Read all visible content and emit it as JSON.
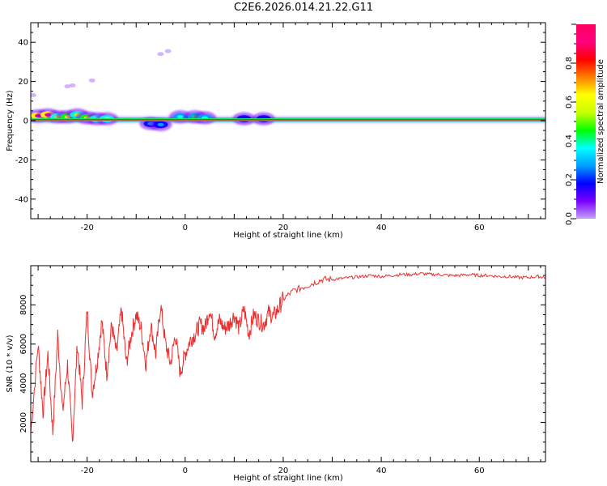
{
  "title": "C2E6.2026.014.21.22.G11",
  "chart_data": [
    {
      "type": "heatmap",
      "title": "",
      "xlabel": "Height of straight line (km)",
      "ylabel": "Frequency (Hz)",
      "xlim": [
        -31.5,
        73.5
      ],
      "ylim": [
        -50,
        50
      ],
      "xticks": [
        -20,
        0,
        20,
        40,
        60
      ],
      "yticks": [
        -40,
        -20,
        0,
        20,
        40
      ],
      "colorbar": {
        "label": "Normalized spectral amplitude",
        "range": [
          0,
          1
        ],
        "ticks": [
          0.0,
          0.2,
          0.4,
          0.6,
          0.8
        ],
        "colors": [
          "#c8a0ff",
          "#7800ff",
          "#0000ff",
          "#00a0ff",
          "#00ffff",
          "#00ff00",
          "#c8ff00",
          "#ffff00",
          "#ff8000",
          "#ff0000",
          "#ff0080",
          "#ff0060"
        ]
      },
      "ridge": {
        "x_start": -31.5,
        "x_end": 73.5,
        "frequency_hz": 0.5
      },
      "scatter_points": [
        {
          "x": -31,
          "y": 13,
          "amp": 0.1
        },
        {
          "x": -24,
          "y": 17.5,
          "amp": 0.1
        },
        {
          "x": -23,
          "y": 18,
          "amp": 0.05
        },
        {
          "x": -19,
          "y": 20.5,
          "amp": 0.05
        },
        {
          "x": -5,
          "y": 34,
          "amp": 0.05
        },
        {
          "x": -3.5,
          "y": 35.5,
          "amp": 0.05
        }
      ],
      "blobs": [
        {
          "x": -30,
          "y": 2.5,
          "amp": 0.95
        },
        {
          "x": -28,
          "y": 3,
          "amp": 0.9
        },
        {
          "x": -26,
          "y": 2,
          "amp": 0.5
        },
        {
          "x": -24,
          "y": 2,
          "amp": 0.6
        },
        {
          "x": -22,
          "y": 3,
          "amp": 0.5
        },
        {
          "x": -20,
          "y": 1.5,
          "amp": 0.6
        },
        {
          "x": -18,
          "y": 1,
          "amp": 0.5
        },
        {
          "x": -16,
          "y": 1,
          "amp": 0.5
        },
        {
          "x": -7,
          "y": -1.5,
          "amp": 0.3
        },
        {
          "x": -5,
          "y": -2,
          "amp": 0.3
        },
        {
          "x": -1,
          "y": 2,
          "amp": 0.4
        },
        {
          "x": 2,
          "y": 2,
          "amp": 0.45
        },
        {
          "x": 4,
          "y": 1.5,
          "amp": 0.4
        },
        {
          "x": 12,
          "y": 1,
          "amp": 0.2
        },
        {
          "x": 16,
          "y": 1,
          "amp": 0.2
        }
      ]
    },
    {
      "type": "line",
      "title": "",
      "xlabel": "Height of straight line (km)",
      "ylabel": "SNR (10 * v/v)",
      "xlim": [
        -31.5,
        73.5
      ],
      "ylim": [
        0,
        10000
      ],
      "xticks": [
        -20,
        0,
        20,
        40,
        60
      ],
      "yticks": [
        2000,
        4000,
        6000,
        8000
      ],
      "series": [
        {
          "name": "SNR",
          "color": "#e83030",
          "x": [
            -31.5,
            -30,
            -29,
            -28,
            -27,
            -26,
            -25,
            -24,
            -23,
            -22,
            -21,
            -20,
            -19,
            -18,
            -17,
            -16,
            -15,
            -14,
            -13,
            -12,
            -11,
            -10,
            -9,
            -8,
            -7,
            -6,
            -5,
            -4,
            -3,
            -2,
            -1,
            0,
            1,
            2,
            3,
            4,
            5,
            6,
            7,
            8,
            9,
            10,
            11,
            12,
            13,
            14,
            15,
            16,
            17,
            18,
            19,
            20,
            22,
            24,
            26,
            28,
            30,
            32,
            34,
            36,
            38,
            40,
            42,
            44,
            46,
            48,
            50,
            52,
            54,
            56,
            58,
            60,
            62,
            64,
            66,
            68,
            70,
            72,
            73.5
          ],
          "values": [
            1500,
            6000,
            2500,
            5500,
            1500,
            6500,
            2500,
            5000,
            1000,
            6000,
            3000,
            7800,
            3500,
            5000,
            7200,
            4500,
            7000,
            5500,
            7800,
            5000,
            6500,
            7500,
            6800,
            5000,
            7000,
            5500,
            8000,
            6000,
            5000,
            6500,
            4500,
            5500,
            6200,
            6500,
            7000,
            6800,
            7800,
            6500,
            7200,
            6800,
            7000,
            7500,
            6800,
            7800,
            6500,
            7500,
            7200,
            7000,
            7600,
            7400,
            7800,
            8300,
            8700,
            8900,
            9100,
            9300,
            9300,
            9350,
            9400,
            9450,
            9500,
            9450,
            9500,
            9550,
            9550,
            9600,
            9550,
            9550,
            9500,
            9500,
            9550,
            9500,
            9500,
            9450,
            9450,
            9400,
            9400,
            9450,
            9400
          ]
        }
      ]
    }
  ]
}
